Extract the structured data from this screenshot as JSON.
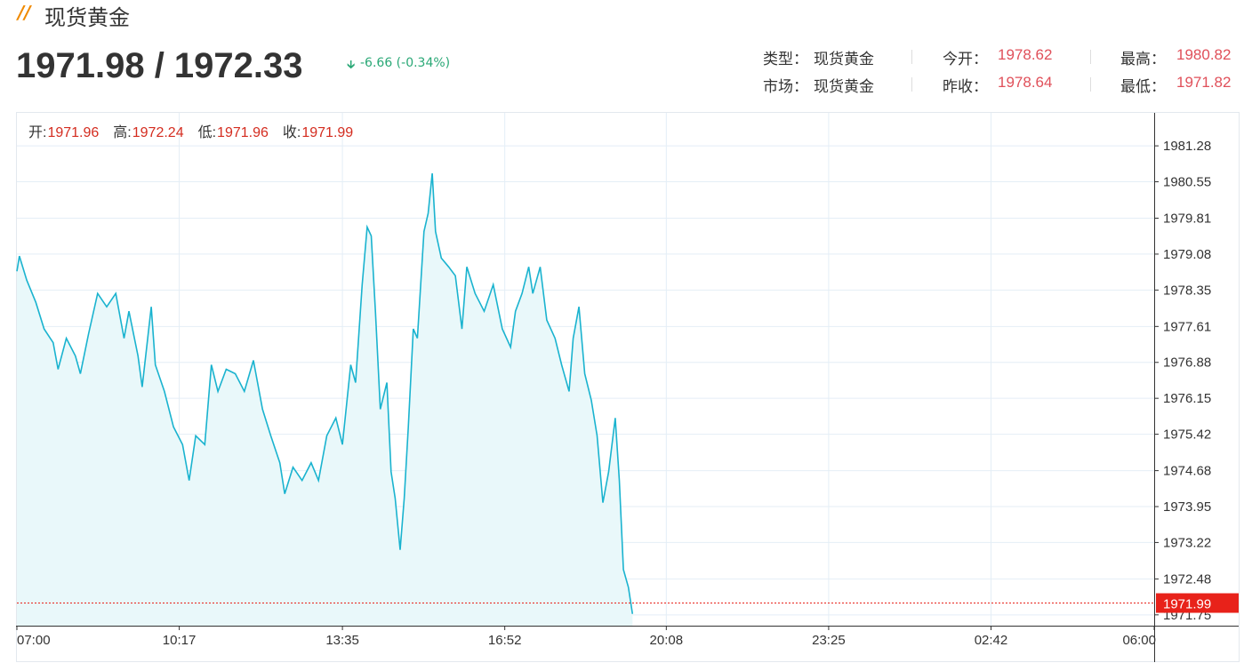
{
  "header": {
    "title": "现货黄金",
    "price": "1971.98 / 1972.33",
    "change": "-6.66 (-0.34%)",
    "info": [
      [
        {
          "label": "类型：",
          "value": "现货黄金"
        },
        {
          "label": "今开：",
          "value": "1978.62"
        },
        {
          "label": "最高：",
          "value": "1980.82"
        }
      ],
      [
        {
          "label": "市场：",
          "value": "现货黄金"
        },
        {
          "label": "昨收：",
          "value": "1978.64"
        },
        {
          "label": "最低：",
          "value": "1971.82"
        }
      ]
    ]
  },
  "chart_data": {
    "type": "line",
    "color": "#1ab3cf",
    "area_color": "#e9f8fa",
    "grid": true,
    "ohlc": [
      {
        "label": "开:",
        "value": 1971.96
      },
      {
        "label": "高:",
        "value": 1972.24
      },
      {
        "label": "低:",
        "value": 1971.96
      },
      {
        "label": "收:",
        "value": 1971.99
      }
    ],
    "last_price": 1971.99,
    "last_price_color": "#e8221a",
    "x": [
      "07:00",
      "07:03",
      "07:12",
      "07:23",
      "07:33",
      "07:44",
      "07:50",
      "08:00",
      "08:11",
      "08:17",
      "08:27",
      "08:38",
      "08:49",
      "09:00",
      "09:10",
      "09:16",
      "09:27",
      "09:32",
      "09:43",
      "09:48",
      "09:59",
      "10:10",
      "10:21",
      "10:29",
      "10:37",
      "10:48",
      "10:56",
      "11:04",
      "11:14",
      "11:25",
      "11:36",
      "11:47",
      "11:58",
      "12:08",
      "12:19",
      "12:25",
      "12:35",
      "12:46",
      "12:57",
      "13:06",
      "13:16",
      "13:27",
      "13:35",
      "13:45",
      "13:51",
      "13:59",
      "14:05",
      "14:10",
      "14:15",
      "14:21",
      "14:29",
      "14:34",
      "14:39",
      "14:45",
      "14:50",
      "14:55",
      "15:01",
      "15:06",
      "15:14",
      "15:19",
      "15:24",
      "15:28",
      "15:35",
      "15:44",
      "15:52",
      "16:00",
      "16:06",
      "16:16",
      "16:27",
      "16:38",
      "16:49",
      "16:59",
      "17:05",
      "17:13",
      "17:21",
      "17:26",
      "17:35",
      "17:43",
      "17:53",
      "18:01",
      "18:10",
      "18:15",
      "18:22",
      "18:29",
      "18:37",
      "18:44",
      "18:51",
      "18:58",
      "19:06",
      "19:11",
      "19:16",
      "19:22",
      "19:27"
    ],
    "values": [
      1978.73,
      1979.04,
      1978.55,
      1978.1,
      1977.56,
      1977.28,
      1976.74,
      1977.37,
      1977.01,
      1976.65,
      1977.46,
      1978.28,
      1978.01,
      1978.28,
      1977.37,
      1977.92,
      1977.01,
      1976.38,
      1978.01,
      1976.83,
      1976.29,
      1975.57,
      1975.21,
      1974.48,
      1975.39,
      1975.21,
      1976.83,
      1976.29,
      1976.74,
      1976.65,
      1976.29,
      1976.92,
      1975.93,
      1975.39,
      1974.84,
      1974.21,
      1974.75,
      1974.48,
      1974.84,
      1974.48,
      1975.39,
      1975.75,
      1975.21,
      1976.83,
      1976.47,
      1978.46,
      1979.63,
      1979.45,
      1977.92,
      1975.93,
      1976.47,
      1974.66,
      1974.12,
      1973.07,
      1974.12,
      1975.57,
      1977.56,
      1977.37,
      1979.54,
      1979.91,
      1980.72,
      1979.54,
      1979.0,
      1978.82,
      1978.64,
      1977.56,
      1978.82,
      1978.28,
      1977.92,
      1978.46,
      1977.56,
      1977.19,
      1977.92,
      1978.28,
      1978.82,
      1978.28,
      1978.82,
      1977.74,
      1977.37,
      1976.83,
      1976.29,
      1977.37,
      1978.01,
      1976.65,
      1976.11,
      1975.39,
      1974.03,
      1974.66,
      1975.75,
      1974.48,
      1972.67,
      1972.31,
      1971.77
    ],
    "xlim": [
      "07:00",
      "06:00"
    ],
    "xticks": [
      "07:00",
      "10:17",
      "13:35",
      "16:52",
      "20:08",
      "23:25",
      "02:42",
      "06:00"
    ],
    "ylim": [
      1971.53,
      1981.95
    ],
    "yticks": [
      1981.28,
      1980.55,
      1979.81,
      1979.08,
      1978.35,
      1977.61,
      1976.88,
      1976.15,
      1975.42,
      1974.68,
      1973.95,
      1973.22,
      1972.48,
      1971.75
    ]
  }
}
